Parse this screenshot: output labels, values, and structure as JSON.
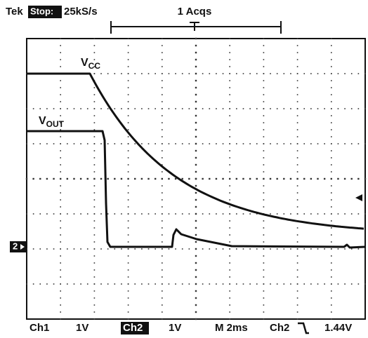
{
  "header": {
    "brand": "Tek",
    "state": "Stop:",
    "rate": "25kS/s",
    "acqs": "1 Acqs"
  },
  "traces": [
    {
      "label": {
        "main": "V",
        "sub": "CC"
      }
    },
    {
      "label": {
        "main": "V",
        "sub": "OUT"
      }
    }
  ],
  "ground_marker": "2",
  "footer": {
    "ch1": "Ch1",
    "ch1_scale": "1V",
    "ch2": "Ch2",
    "ch2_scale": "1V",
    "timebase": "M 2ms",
    "trigger_source": "Ch2",
    "trigger_level": "1.44V"
  }
}
